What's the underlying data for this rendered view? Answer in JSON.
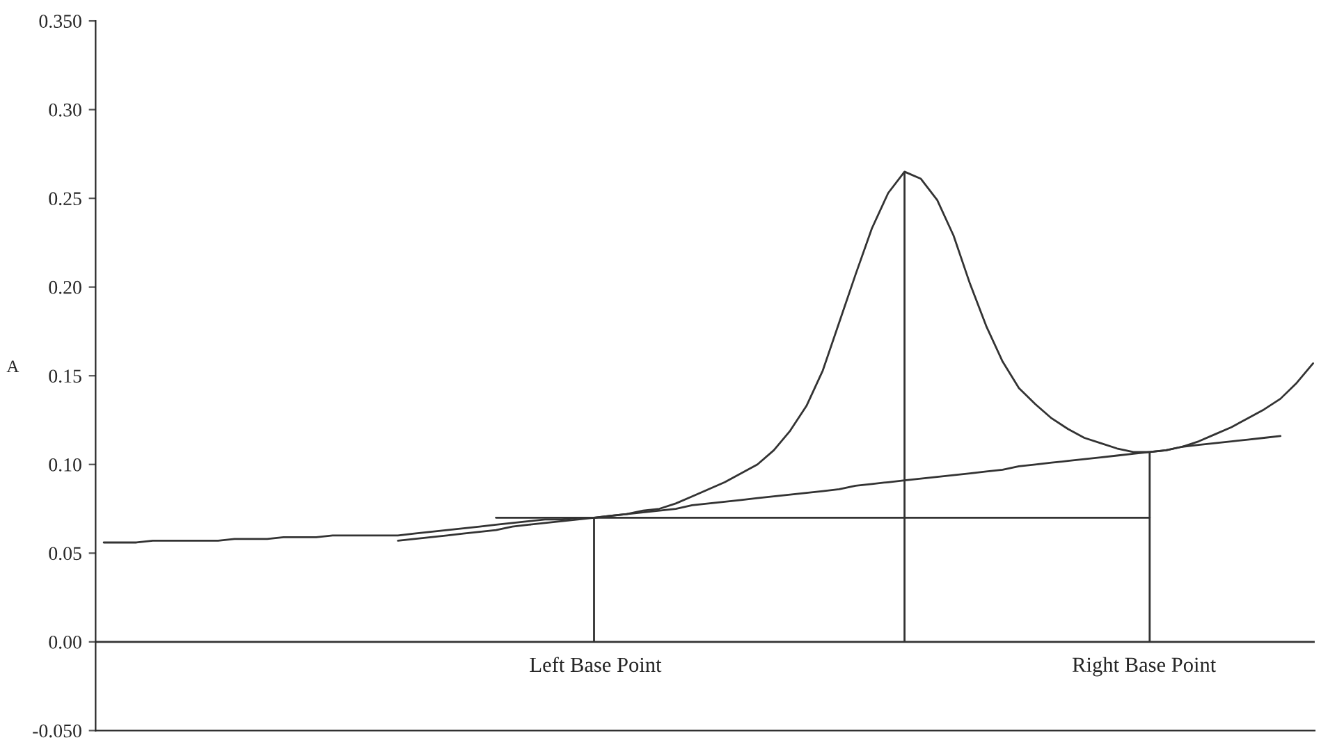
{
  "chart_data": {
    "type": "line",
    "ylabel": "A",
    "categories": [
      null,
      null,
      null,
      null,
      null,
      null,
      null,
      null,
      null,
      null,
      null,
      null,
      null,
      null,
      null,
      null,
      null,
      null,
      null,
      null,
      null,
      null,
      null,
      null,
      null,
      null,
      null,
      null,
      null,
      null,
      null,
      null,
      null,
      null,
      null,
      null,
      null,
      null,
      null,
      null,
      null,
      null,
      null,
      null,
      null,
      null,
      null,
      null,
      null,
      null,
      null,
      null,
      null,
      null,
      null,
      null,
      null,
      null,
      null,
      null,
      null,
      null,
      null,
      null,
      null,
      null,
      null,
      null,
      null,
      null,
      null,
      null,
      null,
      null,
      null
    ],
    "ylim": [
      -0.05,
      0.35
    ],
    "yticks": [
      {
        "value": -0.05,
        "label": "-0.050"
      },
      {
        "value": 0,
        "label": "0.00"
      },
      {
        "value": 0.05,
        "label": "0.05"
      },
      {
        "value": 0.1,
        "label": "0.10"
      },
      {
        "value": 0.15,
        "label": "0.15"
      },
      {
        "value": 0.2,
        "label": "0.20"
      },
      {
        "value": 0.25,
        "label": "0.25"
      },
      {
        "value": 0.3,
        "label": "0.30"
      },
      {
        "value": 0.35,
        "label": "0.350"
      }
    ],
    "tick_labels": "y",
    "grid": false,
    "legend": false,
    "marker": "none",
    "line_style": "solid",
    "series": [
      {
        "color": "#333333",
        "values": [
          0.056,
          0.056,
          0.056,
          0.057,
          0.057,
          0.057,
          0.057,
          0.057,
          0.058,
          0.058,
          0.058,
          0.059,
          0.059,
          0.059,
          0.06,
          0.06,
          0.06,
          0.06,
          0.06,
          0.061,
          0.062,
          0.063,
          0.064,
          0.065,
          0.066,
          0.067,
          0.068,
          0.069,
          0.069,
          0.07,
          0.07,
          0.071,
          0.072,
          0.074,
          0.075,
          0.078,
          0.082,
          0.086,
          0.09,
          0.095,
          0.1,
          0.108,
          0.119,
          0.133,
          0.153,
          0.18,
          0.207,
          0.233,
          0.253,
          0.265,
          0.261,
          0.249,
          0.229,
          0.202,
          0.178,
          0.158,
          0.143,
          0.134,
          0.126,
          0.12,
          0.115,
          0.112,
          0.109,
          0.107,
          0.107,
          0.108,
          0.11,
          0.113,
          0.117,
          0.121,
          0.126,
          0.131,
          0.137,
          0.146,
          0.157
        ]
      },
      {
        "color": "#333333",
        "values": [
          null,
          null,
          null,
          null,
          null,
          null,
          null,
          null,
          null,
          null,
          null,
          null,
          null,
          null,
          null,
          null,
          null,
          null,
          0.057,
          0.058,
          0.059,
          0.06,
          0.061,
          0.062,
          0.063,
          0.065,
          0.066,
          0.067,
          0.068,
          0.069,
          0.07,
          0.071,
          0.072,
          0.073,
          0.074,
          0.075,
          0.077,
          0.078,
          0.079,
          0.08,
          0.081,
          0.082,
          0.083,
          0.084,
          0.085,
          0.086,
          0.088,
          0.089,
          0.09,
          0.091,
          0.092,
          0.093,
          0.094,
          0.095,
          0.096,
          0.097,
          0.099,
          0.1,
          0.101,
          0.102,
          0.103,
          0.104,
          0.105,
          0.106,
          0.107,
          0.108,
          0.11,
          0.111,
          0.112,
          0.113,
          0.114,
          0.115,
          0.116,
          null,
          null
        ]
      },
      {
        "color": "#333333",
        "values": [
          null,
          null,
          null,
          null,
          null,
          null,
          null,
          null,
          null,
          null,
          null,
          null,
          null,
          null,
          null,
          null,
          null,
          null,
          null,
          null,
          null,
          null,
          null,
          null,
          0.07,
          0.07,
          0.07,
          0.07,
          0.07,
          0.07,
          0.07,
          0.07,
          0.07,
          0.07,
          0.07,
          0.07,
          0.07,
          0.07,
          0.07,
          0.07,
          0.07,
          0.07,
          0.07,
          0.07,
          0.07,
          0.07,
          0.07,
          0.07,
          0.07,
          0.07,
          0.07,
          0.07,
          0.07,
          0.07,
          0.07,
          0.07,
          0.07,
          0.07,
          0.07,
          0.07,
          0.07,
          0.07,
          0.07,
          0.07,
          0.07,
          null,
          null,
          null,
          null,
          null,
          null,
          null,
          null,
          null,
          null
        ]
      },
      {
        "type": "bar",
        "color": "#333333",
        "values": [
          null,
          null,
          null,
          null,
          null,
          null,
          null,
          null,
          null,
          null,
          null,
          null,
          null,
          null,
          null,
          null,
          null,
          null,
          null,
          null,
          null,
          null,
          null,
          null,
          null,
          null,
          null,
          null,
          null,
          null,
          0.07,
          null,
          null,
          null,
          null,
          null,
          null,
          null,
          null,
          null,
          null,
          null,
          null,
          null,
          null,
          null,
          null,
          null,
          null,
          0.265,
          null,
          null,
          null,
          null,
          null,
          null,
          null,
          null,
          null,
          null,
          null,
          null,
          null,
          null,
          0.107,
          null,
          null,
          null,
          null,
          null,
          null,
          null,
          null,
          null,
          null
        ]
      }
    ],
    "ref_lines": [
      {
        "axis": "y",
        "value": 0,
        "color": "#333333",
        "line_style": "solid"
      }
    ],
    "annotations": [
      "Left Base Point",
      "Right Base Point"
    ]
  }
}
